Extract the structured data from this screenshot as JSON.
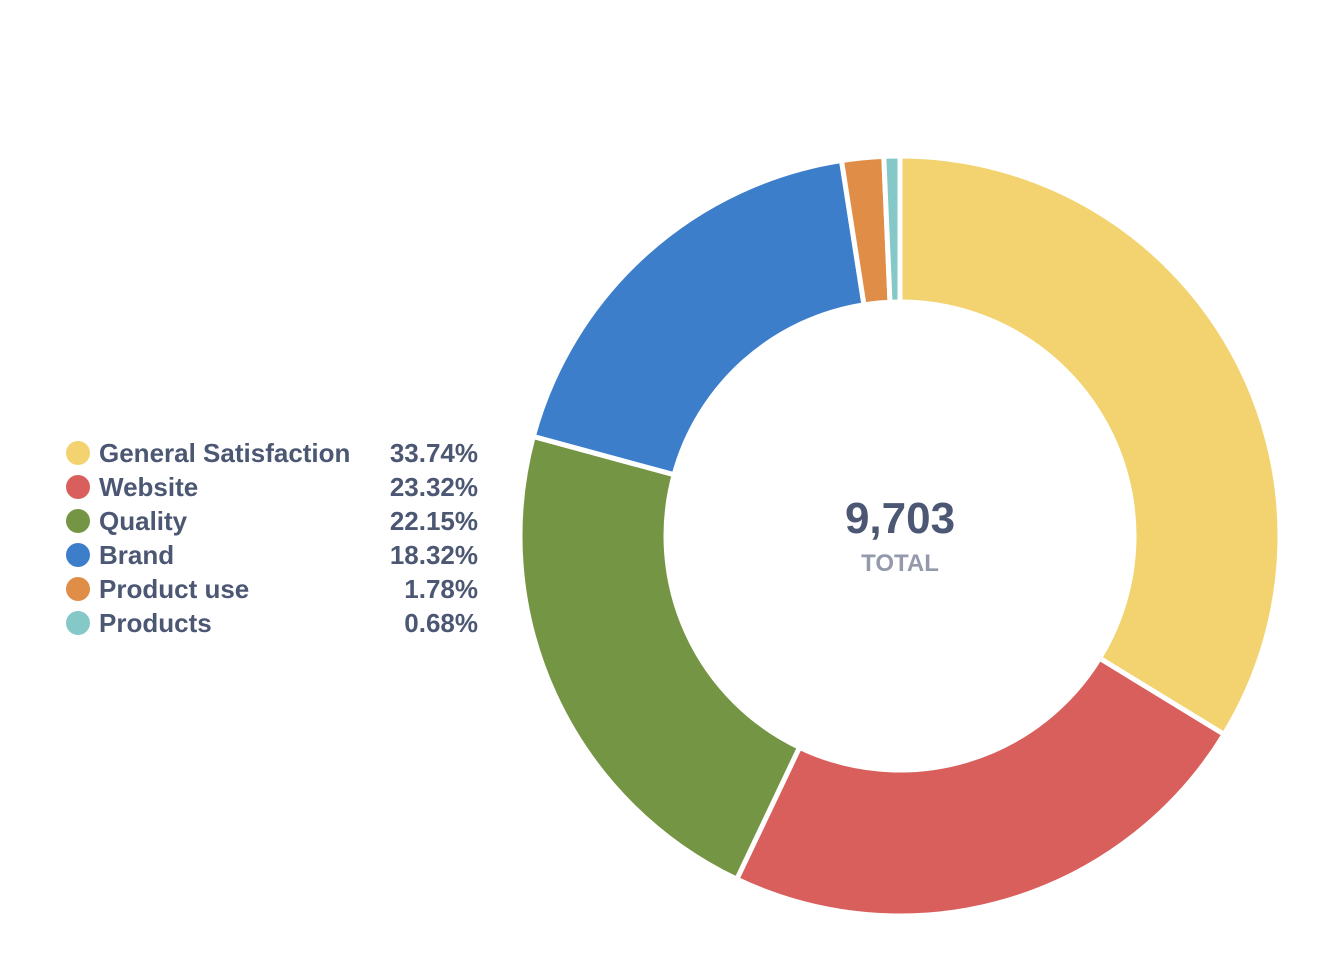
{
  "chart_data": {
    "type": "pie",
    "variant": "donut",
    "total": "9,703",
    "total_label": "TOTAL",
    "legend_placement": "left",
    "slices": [
      {
        "name": "General Satisfaction",
        "value": 33.74,
        "label": "33.74%",
        "color": "#f2d370"
      },
      {
        "name": "Website",
        "value": 23.32,
        "label": "23.32%",
        "color": "#d95f5c"
      },
      {
        "name": "Quality",
        "value": 22.15,
        "label": "22.15%",
        "color": "#749543"
      },
      {
        "name": "Brand",
        "value": 18.32,
        "label": "18.32%",
        "color": "#3d7ecb"
      },
      {
        "name": "Product use",
        "value": 1.78,
        "label": "1.78%",
        "color": "#e08d48"
      },
      {
        "name": "Products",
        "value": 0.68,
        "label": "0.68%",
        "color": "#84c8c8"
      }
    ]
  }
}
